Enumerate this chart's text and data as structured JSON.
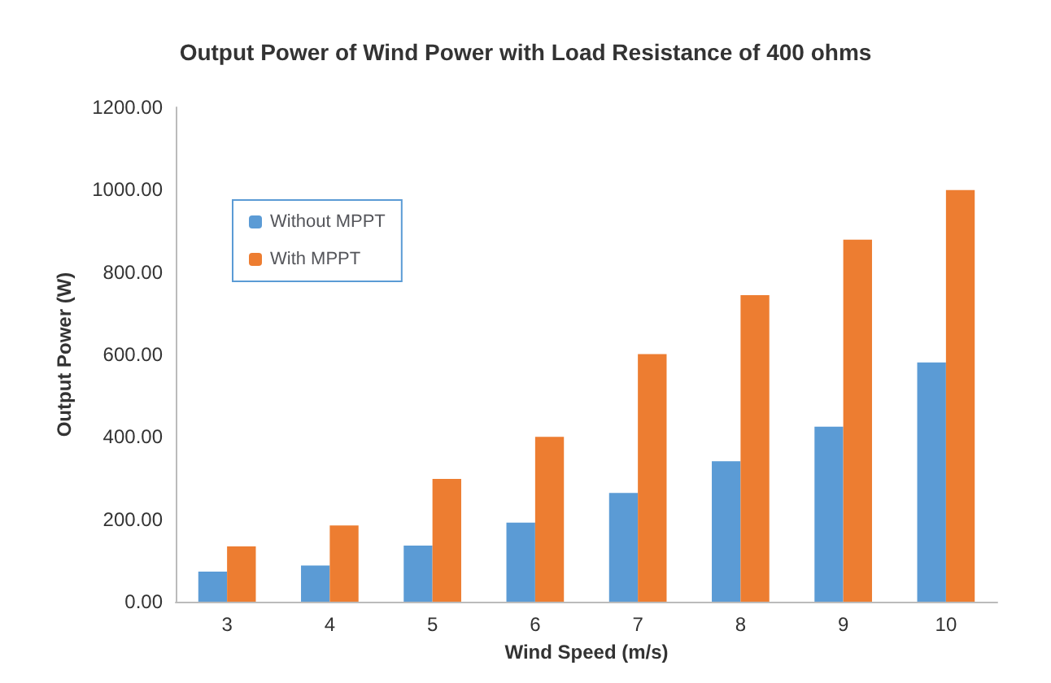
{
  "chart_data": {
    "type": "bar",
    "title": "Output Power of Wind Power with Load Resistance of 400 ohms",
    "xlabel": "Wind Speed (m/s)",
    "ylabel": "Output Power (W)",
    "categories": [
      "3",
      "4",
      "5",
      "6",
      "7",
      "8",
      "9",
      "10"
    ],
    "series": [
      {
        "name": "Without MPPT",
        "color": "#5b9bd5",
        "values": [
          73,
          88,
          136,
          192,
          264,
          341,
          425,
          581
        ]
      },
      {
        "name": "With MPPT",
        "color": "#ed7d31",
        "values": [
          134,
          185,
          298,
          400,
          601,
          744,
          879,
          999
        ]
      }
    ],
    "ylim": [
      0,
      1200
    ],
    "yticks": [
      {
        "value": 0,
        "label": "0.00"
      },
      {
        "value": 200,
        "label": "200.00"
      },
      {
        "value": 400,
        "label": "400.00"
      },
      {
        "value": 600,
        "label": "600.00"
      },
      {
        "value": 800,
        "label": "800.00"
      },
      {
        "value": 1000,
        "label": "1000.00"
      },
      {
        "value": 1200,
        "label": "1200.00"
      }
    ],
    "grid": false,
    "legend": "top left"
  }
}
